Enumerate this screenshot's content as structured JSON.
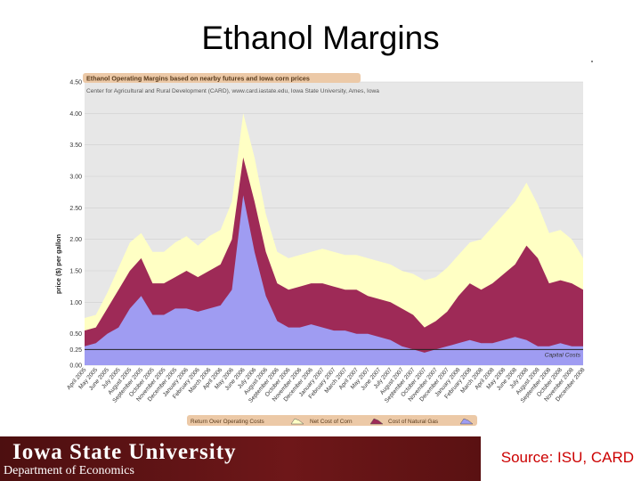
{
  "slide": {
    "title": "Ethanol Margins",
    "university": "Iowa State University",
    "department": "Department of Economics",
    "source": "Source: ISU, CARD"
  },
  "colors": {
    "net_cost_of_corn": "#9e2a57",
    "cost_of_natural_gas": "#9f9cf2",
    "return_over_operating": "#ffffc4",
    "plot_background": "#e7e7e7",
    "title_box": "#ecc9a7",
    "brand_dark": "#5e1314",
    "source_text": "#cc0000"
  },
  "chart_data": {
    "type": "area",
    "title": "Ethanol Operating Margins based on nearby futures and Iowa corn prices",
    "subtitle": "Center for Agricultural and Rural Development (CARD), www.card.iastate.edu, Iowa State University, Ames, Iowa",
    "ylabel": "price ($) per gallon",
    "ylim": [
      0,
      4.5
    ],
    "yticks": [
      "0.00",
      "0.25",
      "0.50",
      "1.00",
      "1.50",
      "2.00",
      "2.50",
      "3.00",
      "3.50",
      "4.00",
      "4.50"
    ],
    "ytick_values": [
      0,
      0.25,
      0.5,
      1.0,
      1.5,
      2.0,
      2.5,
      3.0,
      3.5,
      4.0,
      4.5
    ],
    "capital_costs_line": 0.25,
    "capital_costs_label": "Capital Costs",
    "grid": true,
    "legend_position": "bottom",
    "x": [
      "April 2005",
      "May 2005",
      "June 2005",
      "July 2005",
      "August 2005",
      "September 2005",
      "October 2005",
      "November 2005",
      "December 2005",
      "January 2006",
      "February 2006",
      "March 2006",
      "April 2006",
      "May 2006",
      "June 2006",
      "July 2006",
      "August 2006",
      "September 2006",
      "October 2006",
      "November 2006",
      "December 2006",
      "January 2007",
      "February 2007",
      "March 2007",
      "April 2007",
      "May 2007",
      "June 2007",
      "July 2007",
      "August 2007",
      "September 2007",
      "October 2007",
      "November 2007",
      "December 2007",
      "January 2008",
      "February 2008",
      "March 2008",
      "April 2008",
      "May 2008",
      "June 2008",
      "July 2008",
      "August 2008",
      "September 2008",
      "October 2008",
      "November 2008",
      "December 2008"
    ],
    "series": [
      {
        "name": "Net Cost of Corn",
        "values": [
          0.55,
          0.6,
          0.9,
          1.2,
          1.5,
          1.7,
          1.3,
          1.3,
          1.4,
          1.5,
          1.4,
          1.5,
          1.6,
          2.0,
          3.3,
          2.6,
          1.8,
          1.3,
          1.2,
          1.25,
          1.3,
          1.3,
          1.25,
          1.2,
          1.2,
          1.1,
          1.05,
          1.0,
          0.9,
          0.8,
          0.6,
          0.7,
          0.85,
          1.1,
          1.3,
          1.2,
          1.3,
          1.45,
          1.6,
          1.9,
          1.7,
          1.3,
          1.35,
          1.3,
          1.2
        ]
      },
      {
        "name": "Cost of Natural Gas",
        "values": [
          0.3,
          0.35,
          0.5,
          0.6,
          0.9,
          1.1,
          0.8,
          0.8,
          0.9,
          0.9,
          0.85,
          0.9,
          0.95,
          1.2,
          2.7,
          1.8,
          1.1,
          0.7,
          0.6,
          0.6,
          0.65,
          0.6,
          0.55,
          0.55,
          0.5,
          0.5,
          0.45,
          0.4,
          0.3,
          0.25,
          0.2,
          0.25,
          0.3,
          0.35,
          0.4,
          0.35,
          0.35,
          0.4,
          0.45,
          0.4,
          0.3,
          0.3,
          0.35,
          0.3,
          0.3
        ]
      },
      {
        "name": "Return Over Operating Costs",
        "values": [
          0.75,
          0.8,
          1.15,
          1.55,
          1.95,
          2.1,
          1.8,
          1.8,
          1.95,
          2.05,
          1.9,
          2.05,
          2.15,
          2.6,
          4.0,
          3.3,
          2.4,
          1.8,
          1.7,
          1.75,
          1.8,
          1.85,
          1.8,
          1.75,
          1.75,
          1.7,
          1.65,
          1.6,
          1.5,
          1.45,
          1.35,
          1.4,
          1.55,
          1.75,
          1.95,
          2.0,
          2.2,
          2.4,
          2.6,
          2.9,
          2.55,
          2.1,
          2.15,
          2.0,
          1.7
        ]
      }
    ],
    "legend": [
      "Return Over Operating Costs",
      "Net Cost of Corn",
      "Cost of Natural Gas"
    ]
  }
}
